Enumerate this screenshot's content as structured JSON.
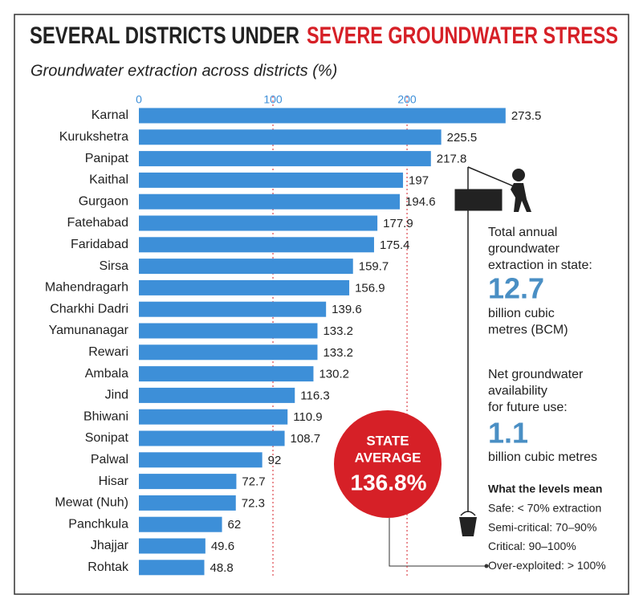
{
  "chart_data": {
    "type": "barh",
    "title": "SEVERAL DISTRICTS UNDER",
    "title_highlight": "SEVERE GROUNDWATER STRESS",
    "subtitle": "Groundwater extraction across districts (%)",
    "categories": [
      "Karnal",
      "Kurukshetra",
      "Panipat",
      "Kaithal",
      "Gurgaon",
      "Fatehabad",
      "Faridabad",
      "Sirsa",
      "Mahendragarh",
      "Charkhi Dadri",
      "Yamunanagar",
      "Rewari",
      "Ambala",
      "Jind",
      "Bhiwani",
      "Sonipat",
      "Palwal",
      "Hisar",
      "Mewat (Nuh)",
      "Panchkula",
      "Jhajjar",
      "Rohtak"
    ],
    "values": [
      273.5,
      225.5,
      217.8,
      197,
      194.6,
      177.9,
      175.4,
      159.7,
      156.9,
      139.6,
      133.2,
      133.2,
      130.2,
      116.3,
      110.9,
      108.7,
      92,
      72.7,
      72.3,
      62,
      49.6,
      48.8
    ],
    "color": "#3d8fd8",
    "grid_color": "#d62027",
    "xlim": [
      0,
      370
    ],
    "xticks": [
      0,
      100,
      200
    ],
    "grid": true,
    "state_average": {
      "text": [
        "STATE",
        "AVERAGE"
      ],
      "figure": "136.8%"
    },
    "panel": {
      "extraction_text": [
        "Total annual",
        "groundwater",
        "extraction in state:"
      ],
      "extraction_figure": "12.7",
      "extraction_unit": [
        "billion cubic",
        "metres (BCM)"
      ],
      "availability_text": [
        "Net groundwater",
        "availability",
        "for future use:"
      ],
      "availability_figure": "1.1",
      "availability_unit": [
        "billion cubic metres"
      ],
      "levels_title": "What the levels mean",
      "levels": [
        "Safe: < 70% extraction",
        "Semi-critical: 70–90%",
        "Critical: 90–100%",
        "Over-exploited: > 100%"
      ]
    }
  }
}
